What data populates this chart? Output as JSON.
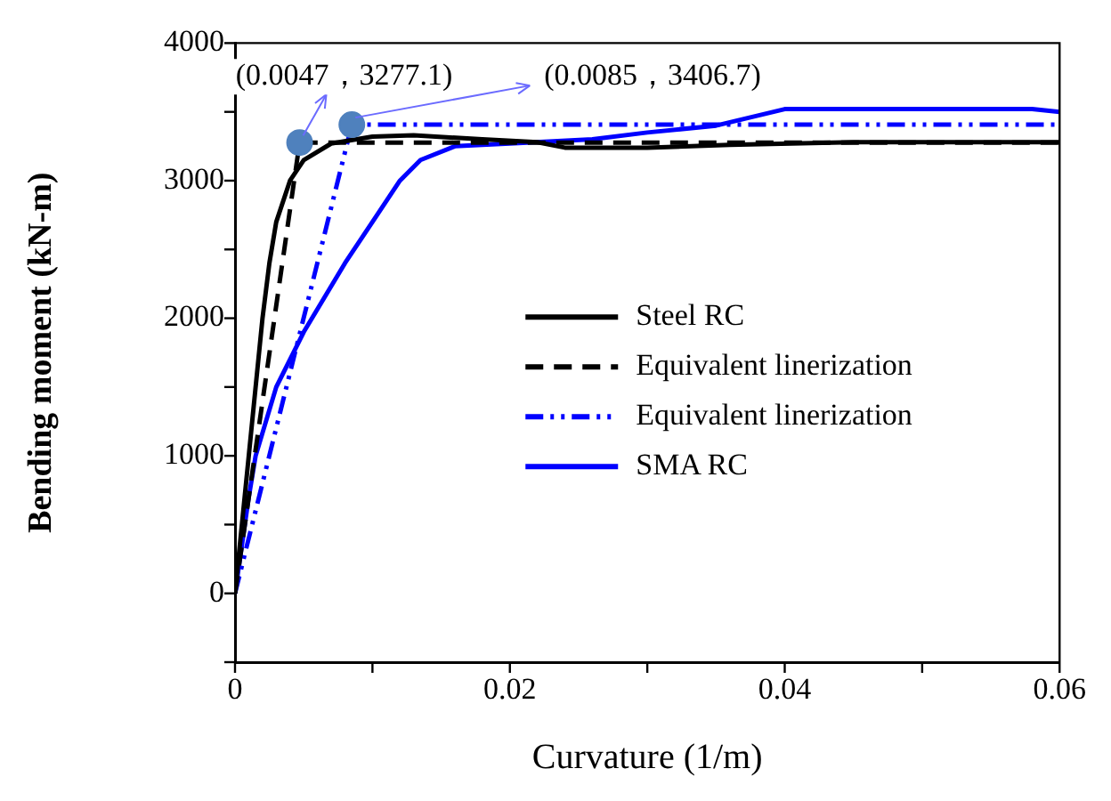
{
  "chart_data": {
    "type": "line",
    "xlabel": "Curvature (1/m)",
    "ylabel": "Bending moment (kN-m)",
    "xlim": [
      0,
      0.06
    ],
    "xticks": [
      0,
      {
        "value": 0.01,
        "label": null
      },
      0.02,
      {
        "value": 0.03,
        "label": null
      },
      0.04,
      {
        "value": 0.05,
        "label": null
      },
      0.06
    ],
    "ylim": [
      -500,
      4000
    ],
    "yticks": [
      {
        "value": -500,
        "label": null
      },
      0,
      {
        "value": 500,
        "label": null
      },
      1000,
      {
        "value": 1500,
        "label": null
      },
      2000,
      {
        "value": 2500,
        "label": null
      },
      3000,
      {
        "value": 3500,
        "label": null
      },
      4000
    ],
    "grid": false,
    "legend": "right",
    "series": [
      {
        "name": "Steel RC",
        "color": "#000000",
        "line_style": "solid",
        "x": [
          0,
          0.0005,
          0.001,
          0.0015,
          0.002,
          0.0025,
          0.003,
          0.004,
          0.005,
          0.007,
          0.01,
          0.013,
          0.018,
          0.022,
          0.024,
          0.03,
          0.036,
          0.045,
          0.06
        ],
        "values": [
          0,
          500,
          1000,
          1500,
          2000,
          2400,
          2700,
          3000,
          3150,
          3270,
          3320,
          3330,
          3300,
          3280,
          3240,
          3240,
          3260,
          3280,
          3280
        ]
      },
      {
        "name": "Equivalent linerization",
        "color": "#000000",
        "line_style": "dashed",
        "x": [
          0,
          0.0047,
          0.06
        ],
        "values": [
          0,
          3277.1,
          3277.1
        ]
      },
      {
        "name": "Equivalent linerization",
        "color": "#0000ff",
        "line_style": "dashdot",
        "x": [
          0,
          0.0085,
          0.06
        ],
        "values": [
          0,
          3406.7,
          3406.7
        ]
      },
      {
        "name": "SMA RC",
        "color": "#0000ff",
        "line_style": "solid",
        "x": [
          0,
          0.001,
          0.0015,
          0.003,
          0.005,
          0.008,
          0.01,
          0.012,
          0.0135,
          0.016,
          0.02,
          0.026,
          0.03,
          0.035,
          0.04,
          0.058,
          0.06
        ],
        "values": [
          0,
          700,
          1000,
          1500,
          1900,
          2400,
          2700,
          3000,
          3150,
          3250,
          3270,
          3300,
          3350,
          3400,
          3520,
          3520,
          3500
        ]
      },
      {
        "type": "scatter",
        "color": "#4f81bd",
        "marker": "circle",
        "x": [
          0.0047,
          0.0085
        ],
        "values": [
          3277.1,
          3406.7
        ]
      }
    ],
    "annotations": [
      {
        "text": "(0.0047，3277.1)",
        "x": 0.0047,
        "y": 3277.1
      },
      {
        "text": "(0.0085，3406.7)",
        "x": 0.0085,
        "y": 3406.7
      }
    ]
  }
}
